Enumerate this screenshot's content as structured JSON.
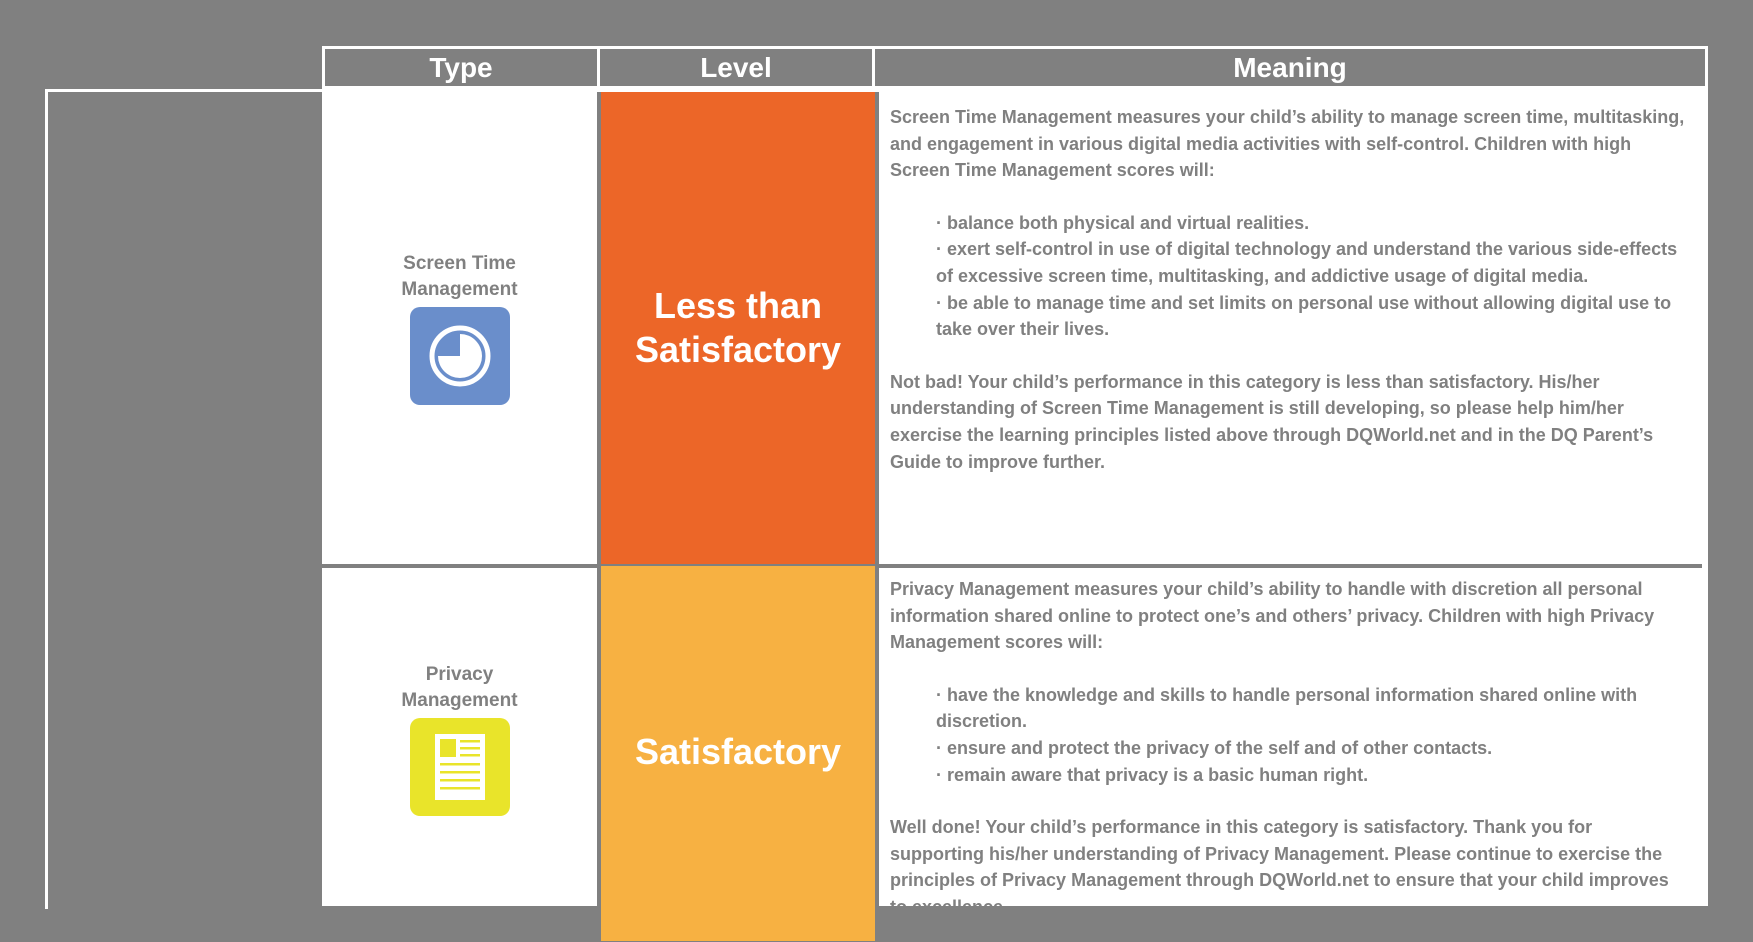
{
  "table": {
    "headers": {
      "type": "Type",
      "level": "Level",
      "meaning": "Meaning"
    },
    "rows": [
      {
        "type_label": "Screen Time Management",
        "icon": "clock-icon",
        "icon_color": "#6a8ecb",
        "level": "Less than Satisfactory",
        "level_color": "#ec6628",
        "intro": "Screen Time Management measures your child’s ability to manage screen time, multitasking, and engagement in various digital media activities with self-control. Children with high Screen Time Management scores will:",
        "bullets": [
          "· balance both physical and virtual realities.",
          "· exert self-control in use of digital technology and understand the various side-effects of excessive screen time, multitasking, and addictive usage of digital media.",
          "· be able to manage time and set limits on personal use without allowing digital use to take over their lives."
        ],
        "summary": "Not bad! Your child’s performance in this category is less than satisfactory. His/her understanding of Screen Time Management is still developing, so please help him/her exercise the learning principles listed above through DQWorld.net and in the DQ Parent’s Guide to improve further."
      },
      {
        "type_label": "Privacy Management",
        "icon": "document-icon",
        "icon_color": "#e9e42a",
        "level": "Satisfactory",
        "level_color": "#f7b142",
        "intro": "Privacy Management measures your child’s ability to handle with discretion all personal information shared online to protect one’s and others’ privacy. Children with high Privacy Management scores will:",
        "bullets": [
          "· have the knowledge and skills to handle personal information shared online with discretion.",
          "· ensure and protect the privacy of the self and of other contacts.",
          "· remain aware that privacy is a basic human right."
        ],
        "summary": "Well done! Your child’s performance in this category is satisfactory. Thank you for supporting his/her understanding of Privacy Management. Please continue to exercise the principles of Privacy Management through DQWorld.net to ensure that your child improves to excellence."
      }
    ]
  }
}
